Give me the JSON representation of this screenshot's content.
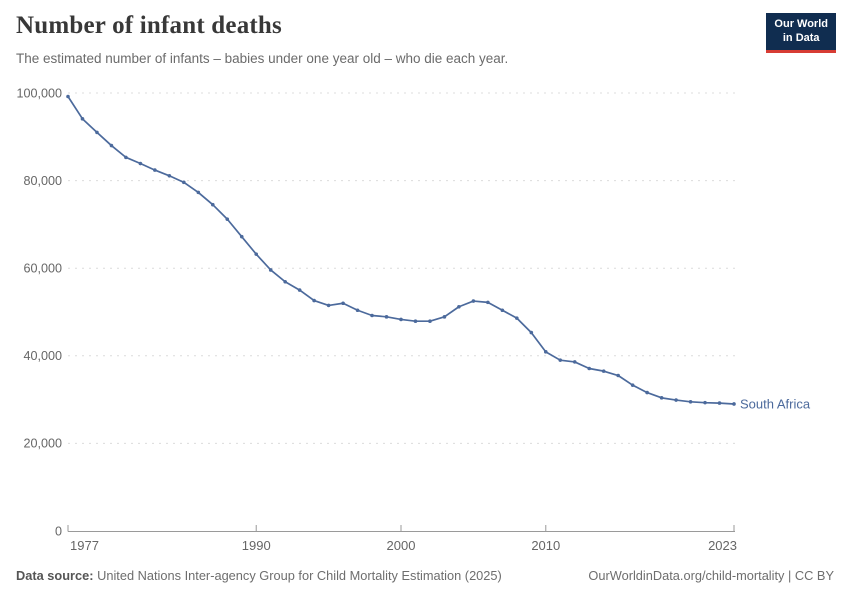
{
  "header": {
    "title": "Number of infant deaths",
    "subtitle": "The estimated number of infants – babies under one year old – who die each year.",
    "logo": {
      "line1": "Our World",
      "line2": "in Data"
    }
  },
  "footer": {
    "source_label": "Data source:",
    "source_text": "United Nations Inter-agency Group for Child Mortality Estimation (2025)",
    "link_text": "OurWorldinData.org/child-mortality | CC BY"
  },
  "colors": {
    "line": "#4c6a9c",
    "series_label": "#4c6a9c",
    "logo_bg": "#102d50",
    "logo_stripe": "#d73c34",
    "grid": "#dcdcdc",
    "axis": "#9a9a9a",
    "tick_text": "#666666"
  },
  "chart_data": {
    "type": "line",
    "title": "Number of infant deaths",
    "subtitle": "The estimated number of infants – babies under one year old – who die each year.",
    "xlabel": "",
    "ylabel": "",
    "xlim": [
      1977,
      2023
    ],
    "ylim": [
      0,
      100000
    ],
    "grid": true,
    "legend": "end-of-line entity label",
    "xticks": [
      {
        "v": 1977,
        "label": "1977"
      },
      {
        "v": 1990,
        "label": "1990"
      },
      {
        "v": 2000,
        "label": "2000"
      },
      {
        "v": 2010,
        "label": "2010"
      },
      {
        "v": 2023,
        "label": "2023"
      }
    ],
    "yticks": [
      {
        "v": 0,
        "label": "0"
      },
      {
        "v": 20000,
        "label": "20,000"
      },
      {
        "v": 40000,
        "label": "40,000"
      },
      {
        "v": 60000,
        "label": "60,000"
      },
      {
        "v": 80000,
        "label": "80,000"
      },
      {
        "v": 100000,
        "label": "100,000"
      }
    ],
    "series": [
      {
        "name": "South Africa",
        "x": [
          1977,
          1978,
          1979,
          1980,
          1981,
          1982,
          1983,
          1984,
          1985,
          1986,
          1987,
          1988,
          1989,
          1990,
          1991,
          1992,
          1993,
          1994,
          1995,
          1996,
          1997,
          1998,
          1999,
          2000,
          2001,
          2002,
          2003,
          2004,
          2005,
          2006,
          2007,
          2008,
          2009,
          2010,
          2011,
          2012,
          2013,
          2014,
          2015,
          2016,
          2017,
          2018,
          2019,
          2020,
          2021,
          2022,
          2023
        ],
        "values": [
          99200,
          94100,
          91000,
          88000,
          85300,
          83900,
          82400,
          81100,
          79600,
          77300,
          74500,
          71200,
          67200,
          63200,
          59600,
          56900,
          55000,
          52600,
          51500,
          52000,
          50400,
          49200,
          48900,
          48300,
          47900,
          47900,
          48900,
          51200,
          52500,
          52200,
          50400,
          48600,
          45300,
          40900,
          39000,
          38600,
          37100,
          36500,
          35500,
          33300,
          31600,
          30400,
          29900,
          29500,
          29300,
          29200,
          29000
        ]
      }
    ]
  }
}
